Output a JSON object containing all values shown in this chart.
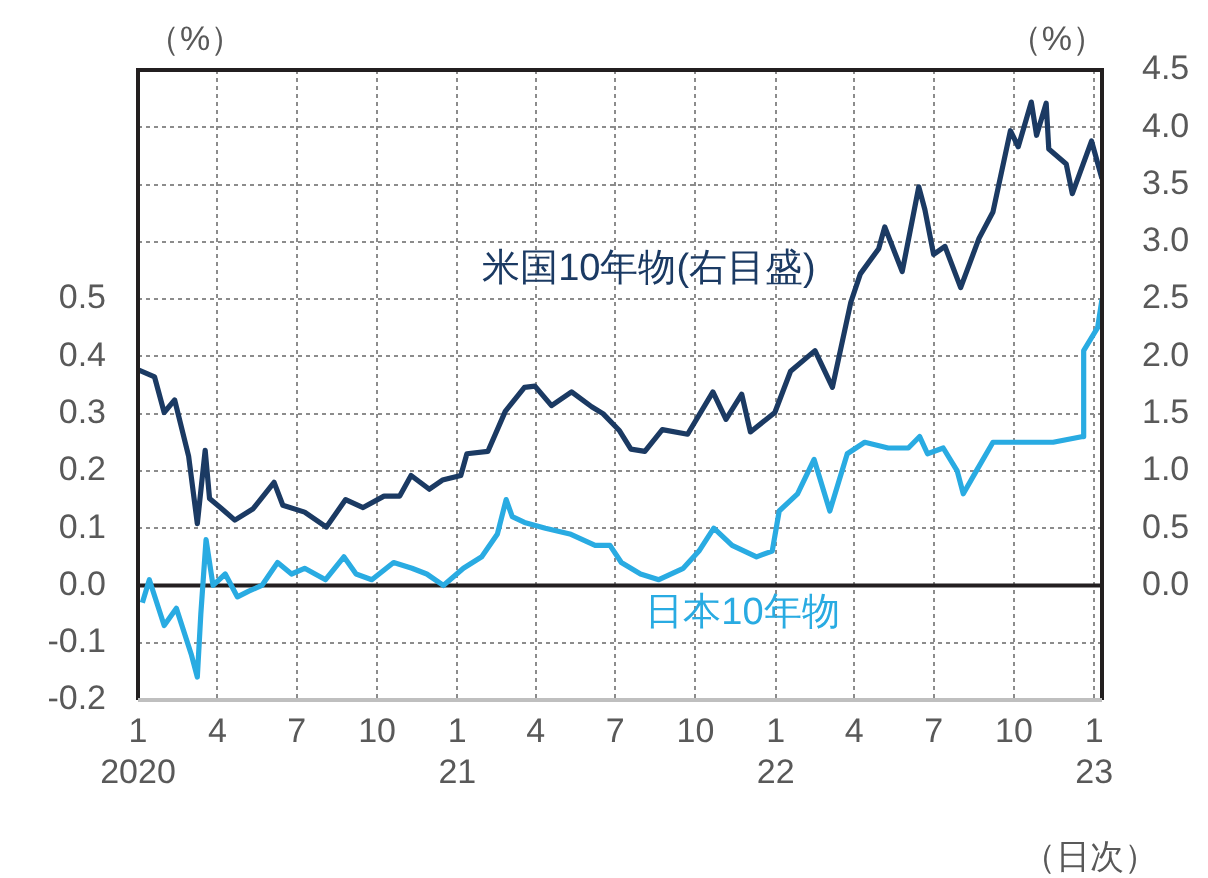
{
  "chart_data": {
    "type": "line",
    "xlabel": "（日次）",
    "ylabel": "（%）",
    "y2label": "（%）",
    "xlim": [
      "2020-01-01",
      "2023-01-10"
    ],
    "xticks": [
      {
        "value": "2020-01-01",
        "label": "1\n2020"
      },
      {
        "value": "2020-04-01",
        "label": "4"
      },
      {
        "value": "2020-07-01",
        "label": "7"
      },
      {
        "value": "2020-10-01",
        "label": "10"
      },
      {
        "value": "2021-01-01",
        "label": "1\n21"
      },
      {
        "value": "2021-04-01",
        "label": "4"
      },
      {
        "value": "2021-07-01",
        "label": "7"
      },
      {
        "value": "2021-10-01",
        "label": "10"
      },
      {
        "value": "2022-01-01",
        "label": "1\n22"
      },
      {
        "value": "2022-04-01",
        "label": "4"
      },
      {
        "value": "2022-07-01",
        "label": "7"
      },
      {
        "value": "2022-10-01",
        "label": "10"
      },
      {
        "value": "2023-01-01",
        "label": "1\n23"
      }
    ],
    "ylim": [
      -0.2,
      0.9
    ],
    "yticks": [
      -0.2,
      -0.1,
      {
        "value": 0,
        "label": "0.0"
      },
      0.1,
      0.2,
      0.3,
      0.4,
      0.5,
      {
        "value": 0.6,
        "label": null
      },
      {
        "value": 0.7,
        "label": null
      },
      {
        "value": 0.8,
        "label": null
      }
    ],
    "y2lim": [
      -1.0,
      4.5
    ],
    "y2ticks": [
      {
        "value": 0,
        "label": "0.0"
      },
      0.5,
      {
        "value": 1,
        "label": "1.0"
      },
      1.5,
      {
        "value": 2,
        "label": "2.0"
      },
      2.5,
      {
        "value": 3,
        "label": "3.0"
      },
      3.5,
      {
        "value": 4,
        "label": "4.0"
      },
      4.5
    ],
    "grid": true,
    "legend": false,
    "marker": "none",
    "line_style": "solid",
    "ref_lines": [
      {
        "axis": "y",
        "value": 0,
        "color": "#231f20"
      }
    ],
    "series": [
      {
        "name": "米国10年物(右目盛)",
        "color": "#1b3a63",
        "axis": "y2",
        "x": [
          "2020-01-02",
          "2020-01-20",
          "2020-01-31",
          "2020-02-12",
          "2020-02-28",
          "2020-03-09",
          "2020-03-18",
          "2020-03-23",
          "2020-04-06",
          "2020-04-21",
          "2020-05-12",
          "2020-06-05",
          "2020-06-15",
          "2020-07-10",
          "2020-08-04",
          "2020-08-26",
          "2020-09-15",
          "2020-10-09",
          "2020-10-27",
          "2020-11-09",
          "2020-11-30",
          "2020-12-15",
          "2021-01-05",
          "2021-01-12",
          "2021-02-05",
          "2021-02-25",
          "2021-03-19",
          "2021-03-31",
          "2021-04-19",
          "2021-05-12",
          "2021-06-04",
          "2021-06-17",
          "2021-07-06",
          "2021-07-19",
          "2021-08-04",
          "2021-08-24",
          "2021-09-22",
          "2021-10-21",
          "2021-11-05",
          "2021-11-23",
          "2021-12-03",
          "2021-12-31",
          "2022-01-18",
          "2022-02-15",
          "2022-03-07",
          "2022-03-28",
          "2022-04-08",
          "2022-04-29",
          "2022-05-06",
          "2022-05-26",
          "2022-06-14",
          "2022-06-21",
          "2022-07-01",
          "2022-07-14",
          "2022-08-01",
          "2022-08-22",
          "2022-09-07",
          "2022-09-27",
          "2022-10-06",
          "2022-10-21",
          "2022-10-27",
          "2022-11-07",
          "2022-11-10",
          "2022-11-30",
          "2022-12-07",
          "2022-12-29",
          "2023-01-10"
        ],
        "values": [
          1.88,
          1.82,
          1.51,
          1.62,
          1.13,
          0.54,
          1.18,
          0.76,
          0.67,
          0.57,
          0.67,
          0.9,
          0.7,
          0.64,
          0.51,
          0.75,
          0.68,
          0.78,
          0.78,
          0.96,
          0.84,
          0.92,
          0.96,
          1.15,
          1.17,
          1.52,
          1.73,
          1.74,
          1.57,
          1.69,
          1.56,
          1.5,
          1.35,
          1.19,
          1.17,
          1.36,
          1.32,
          1.69,
          1.45,
          1.67,
          1.34,
          1.51,
          1.87,
          2.05,
          1.73,
          2.47,
          2.72,
          2.94,
          3.13,
          2.74,
          3.48,
          3.28,
          2.89,
          2.96,
          2.6,
          3.03,
          3.26,
          3.97,
          3.83,
          4.22,
          3.93,
          4.21,
          3.81,
          3.68,
          3.42,
          3.88,
          3.55
        ]
      },
      {
        "name": "日本10年物",
        "color": "#29abe2",
        "x": [
          "2020-01-06",
          "2020-01-14",
          "2020-01-31",
          "2020-02-14",
          "2020-03-02",
          "2020-03-09",
          "2020-03-13",
          "2020-03-19",
          "2020-03-27",
          "2020-04-10",
          "2020-04-24",
          "2020-05-07",
          "2020-05-22",
          "2020-06-09",
          "2020-06-25",
          "2020-07-10",
          "2020-08-03",
          "2020-08-24",
          "2020-09-07",
          "2020-09-25",
          "2020-10-20",
          "2020-11-10",
          "2020-11-27",
          "2020-12-16",
          "2021-01-08",
          "2021-01-29",
          "2021-02-16",
          "2021-02-26",
          "2021-03-05",
          "2021-03-19",
          "2021-04-12",
          "2021-05-10",
          "2021-06-08",
          "2021-06-25",
          "2021-07-08",
          "2021-07-30",
          "2021-08-20",
          "2021-09-17",
          "2021-10-05",
          "2021-10-22",
          "2021-11-12",
          "2021-12-10",
          "2021-12-28",
          "2022-01-05",
          "2022-01-26",
          "2022-02-14",
          "2022-03-04",
          "2022-03-24",
          "2022-04-13",
          "2022-05-10",
          "2022-06-02",
          "2022-06-15",
          "2022-06-24",
          "2022-07-12",
          "2022-07-28",
          "2022-08-04",
          "2022-08-19",
          "2022-09-07",
          "2022-09-29",
          "2022-10-20",
          "2022-11-15",
          "2022-12-19",
          "2022-12-20",
          "2022-12-28",
          "2023-01-05",
          "2023-01-10"
        ],
        "values": [
          -0.03,
          0.01,
          -0.07,
          -0.04,
          -0.12,
          -0.16,
          -0.05,
          0.08,
          0.0,
          0.02,
          -0.02,
          -0.01,
          0.0,
          0.04,
          0.02,
          0.03,
          0.01,
          0.05,
          0.02,
          0.01,
          0.04,
          0.03,
          0.02,
          0.0,
          0.03,
          0.05,
          0.09,
          0.15,
          0.12,
          0.11,
          0.1,
          0.09,
          0.07,
          0.07,
          0.04,
          0.02,
          0.01,
          0.03,
          0.06,
          0.1,
          0.07,
          0.05,
          0.06,
          0.13,
          0.16,
          0.22,
          0.13,
          0.23,
          0.25,
          0.24,
          0.24,
          0.26,
          0.23,
          0.24,
          0.2,
          0.16,
          0.2,
          0.25,
          0.25,
          0.25,
          0.25,
          0.26,
          0.41,
          0.43,
          0.45,
          0.5
        ]
      }
    ]
  }
}
